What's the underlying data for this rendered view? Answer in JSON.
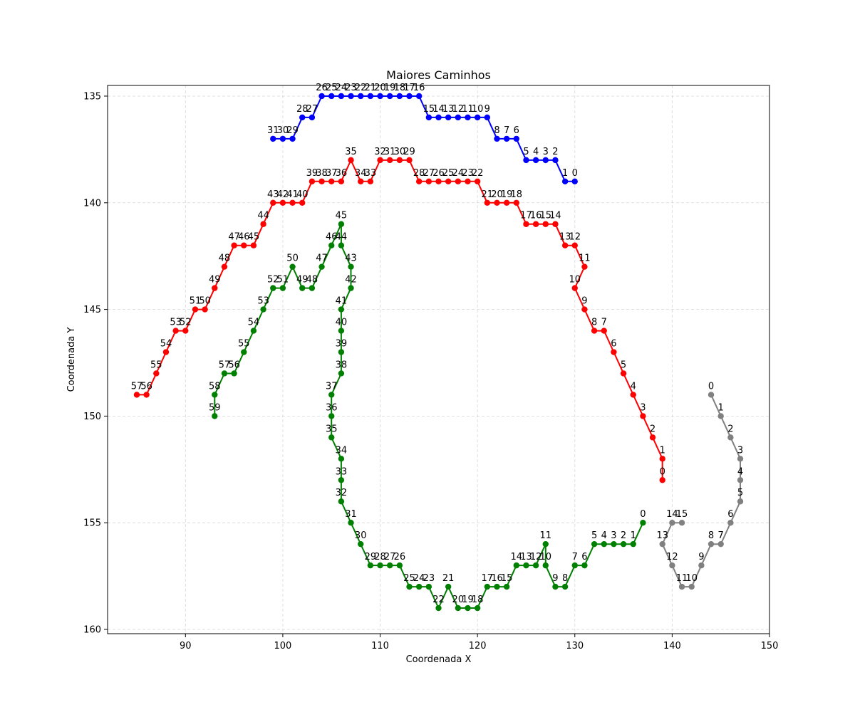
{
  "chart_data": {
    "type": "line",
    "title": "Maiores Caminhos",
    "xlabel": "Coordenada X",
    "ylabel": "Coordenada Y",
    "xlim": [
      82,
      150
    ],
    "ylim": [
      160.2,
      134.5
    ],
    "y_inverted": true,
    "xticks": [
      90,
      100,
      110,
      120,
      130,
      140,
      150
    ],
    "yticks": [
      135,
      140,
      145,
      150,
      155,
      160
    ],
    "grid": true,
    "series": [
      {
        "color": "#0000ff",
        "x": [
          130,
          129,
          128,
          127,
          126,
          125,
          124,
          123,
          122,
          121,
          120,
          119,
          118,
          117,
          116,
          115,
          114,
          113,
          112,
          111,
          110,
          109,
          108,
          107,
          106,
          105,
          104,
          103,
          102,
          101,
          100,
          99
        ],
        "y": [
          139,
          139,
          138,
          138,
          138,
          138,
          137,
          137,
          137,
          136,
          136,
          136,
          136,
          136,
          136,
          136,
          135,
          135,
          135,
          135,
          135,
          135,
          135,
          135,
          135,
          135,
          135,
          136,
          136,
          137,
          137,
          137
        ],
        "labels": [
          "0",
          "1",
          "2",
          "3",
          "4",
          "5",
          "6",
          "7",
          "8",
          "9",
          "10",
          "11",
          "12",
          "13",
          "14",
          "15",
          "16",
          "17",
          "18",
          "19",
          "20",
          "21",
          "22",
          "23",
          "24",
          "25",
          "26",
          "27",
          "28",
          "29",
          "30",
          "31"
        ]
      },
      {
        "color": "#ff0000",
        "x": [
          139,
          139,
          138,
          137,
          136,
          135,
          134,
          133,
          132,
          131,
          130,
          131,
          130,
          129,
          128,
          127,
          126,
          125,
          124,
          123,
          122,
          121,
          120,
          119,
          118,
          117,
          116,
          115,
          114,
          113,
          112,
          111,
          110,
          109,
          108,
          107,
          106,
          105,
          104,
          103,
          102,
          101,
          100,
          99,
          98,
          97,
          96,
          95,
          94,
          93,
          92,
          91,
          90,
          89,
          88,
          87,
          86,
          85
        ],
        "y": [
          153,
          152,
          151,
          150,
          149,
          148,
          147,
          146,
          146,
          145,
          144,
          143,
          142,
          142,
          141,
          141,
          141,
          141,
          140,
          140,
          140,
          140,
          139,
          139,
          139,
          139,
          139,
          139,
          139,
          138,
          138,
          138,
          138,
          139,
          139,
          138,
          139,
          139,
          139,
          139,
          140,
          140,
          140,
          140,
          141,
          142,
          142,
          142,
          143,
          144,
          145,
          145,
          146,
          146,
          147,
          148,
          149,
          149
        ],
        "labels": [
          "0",
          "1",
          "2",
          "3",
          "4",
          "5",
          "6",
          "7",
          "8",
          "9",
          "10",
          "11",
          "12",
          "13",
          "14",
          "15",
          "16",
          "17",
          "18",
          "19",
          "20",
          "21",
          "22",
          "23",
          "24",
          "25",
          "26",
          "27",
          "28",
          "29",
          "30",
          "31",
          "32",
          "33",
          "34",
          "35",
          "36",
          "37",
          "38",
          "39",
          "40",
          "41",
          "42",
          "43",
          "44",
          "45",
          "46",
          "47",
          "48",
          "49",
          "50",
          "51",
          "52",
          "53",
          "54",
          "55",
          "56",
          "57"
        ]
      },
      {
        "color": "#008000",
        "x": [
          137,
          136,
          135,
          134,
          133,
          132,
          131,
          130,
          129,
          128,
          127,
          127,
          126,
          125,
          124,
          123,
          122,
          121,
          120,
          119,
          118,
          117,
          116,
          115,
          114,
          113,
          112,
          111,
          110,
          109,
          108,
          107,
          106,
          106,
          106,
          105,
          105,
          105,
          106,
          106,
          106,
          106,
          107,
          107,
          106,
          106,
          105,
          104,
          103,
          102,
          101,
          100,
          99,
          98,
          97,
          96,
          95,
          94,
          93,
          93
        ],
        "y": [
          155,
          156,
          156,
          156,
          156,
          156,
          157,
          157,
          158,
          158,
          157,
          156,
          157,
          157,
          157,
          158,
          158,
          158,
          159,
          159,
          159,
          158,
          159,
          158,
          158,
          158,
          157,
          157,
          157,
          157,
          156,
          155,
          154,
          153,
          152,
          151,
          150,
          149,
          148,
          147,
          146,
          145,
          144,
          143,
          142,
          141,
          142,
          143,
          144,
          144,
          143,
          144,
          144,
          145,
          146,
          147,
          148,
          148,
          149,
          150
        ],
        "labels": [
          "0",
          "1",
          "2",
          "3",
          "4",
          "5",
          "6",
          "7",
          "8",
          "9",
          "10",
          "11",
          "12",
          "13",
          "14",
          "15",
          "16",
          "17",
          "18",
          "19",
          "20",
          "21",
          "22",
          "23",
          "24",
          "25",
          "26",
          "27",
          "28",
          "29",
          "30",
          "31",
          "32",
          "33",
          "34",
          "35",
          "36",
          "37",
          "38",
          "39",
          "40",
          "41",
          "42",
          "43",
          "44",
          "45",
          "46",
          "47",
          "48",
          "49",
          "50",
          "51",
          "52",
          "53",
          "54",
          "55",
          "56",
          "57",
          "58",
          "59"
        ]
      },
      {
        "color": "#808080",
        "x": [
          144,
          145,
          146,
          147,
          147,
          147,
          146,
          145,
          144,
          143,
          142,
          141,
          140,
          139,
          140,
          141
        ],
        "y": [
          149,
          150,
          151,
          152,
          153,
          154,
          155,
          156,
          156,
          157,
          158,
          158,
          157,
          156,
          155,
          155
        ],
        "labels": [
          "0",
          "1",
          "2",
          "3",
          "4",
          "5",
          "6",
          "7",
          "8",
          "9",
          "10",
          "11",
          "12",
          "13",
          "14",
          "15"
        ]
      }
    ]
  }
}
